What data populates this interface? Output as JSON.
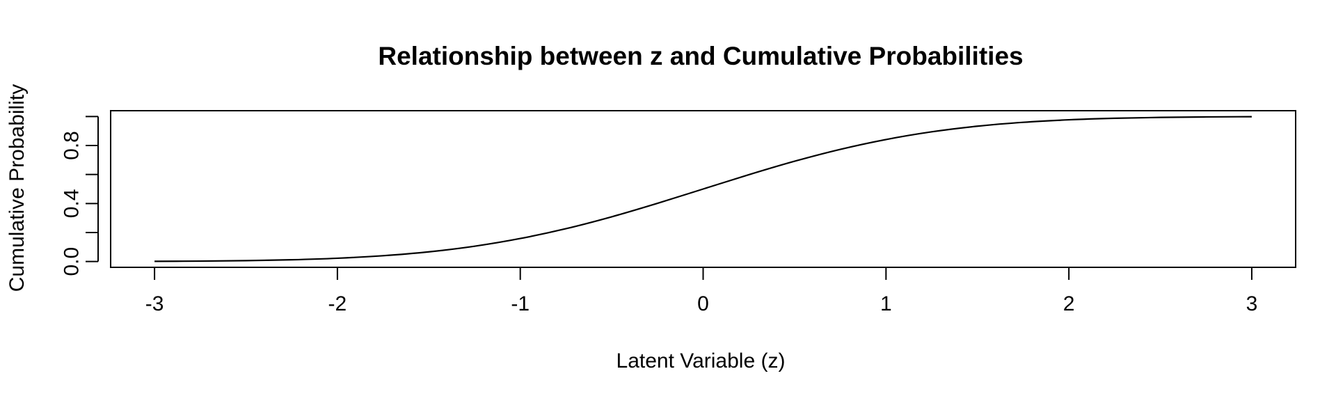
{
  "chart_data": {
    "type": "line",
    "title": "Relationship between z and Cumulative Probabilities",
    "xlabel": "Latent Variable (z)",
    "ylabel": "Cumulative Probability",
    "xlim": [
      -3.24,
      3.24
    ],
    "ylim": [
      -0.04,
      1.04
    ],
    "x_ticks": [
      -3,
      -2,
      -1,
      0,
      1,
      2,
      3
    ],
    "x_tick_labels": [
      "-3",
      "-2",
      "-1",
      "0",
      "1",
      "2",
      "3"
    ],
    "y_ticks": [
      0,
      0.2,
      0.4,
      0.6,
      0.8,
      1.0
    ],
    "y_tick_labels": [
      "0.0",
      "",
      "0.4",
      "",
      "0.8",
      ""
    ],
    "grid": false,
    "legend": "none",
    "line_color": "#000000",
    "series": [
      {
        "x": [
          -3.0,
          -2.75,
          -2.5,
          -2.25,
          -2.0,
          -1.75,
          -1.5,
          -1.25,
          -1.0,
          -0.75,
          -0.5,
          -0.25,
          0.0,
          0.25,
          0.5,
          0.75,
          1.0,
          1.25,
          1.5,
          1.75,
          2.0,
          2.25,
          2.5,
          2.75,
          3.0
        ],
        "values": [
          0.0013,
          0.003,
          0.0062,
          0.0122,
          0.0228,
          0.0401,
          0.0668,
          0.1056,
          0.1587,
          0.2266,
          0.3085,
          0.4013,
          0.5,
          0.5987,
          0.6915,
          0.7734,
          0.8413,
          0.8944,
          0.9332,
          0.9599,
          0.9772,
          0.9878,
          0.9938,
          0.997,
          0.9987
        ]
      }
    ]
  }
}
